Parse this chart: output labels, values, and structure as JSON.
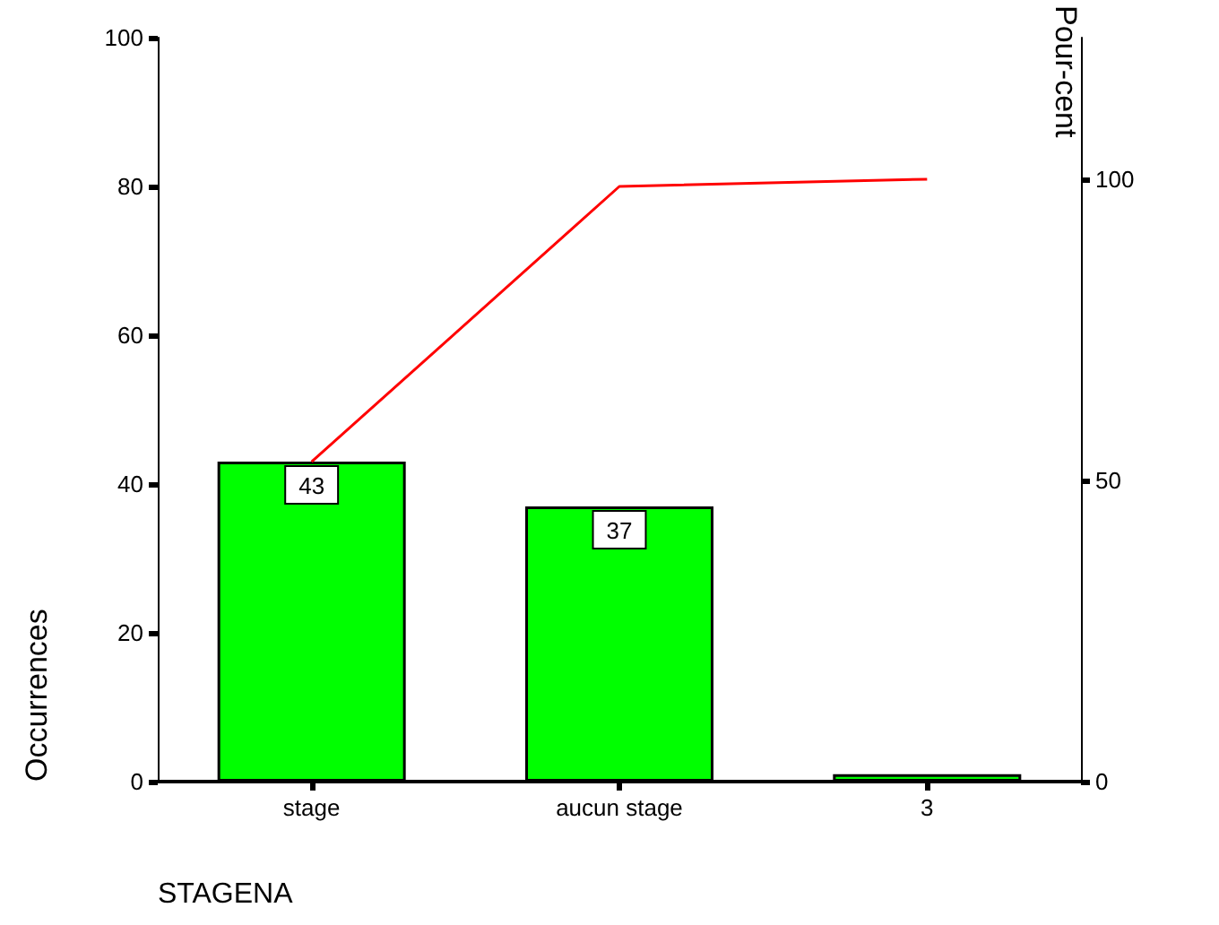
{
  "chart_data": {
    "type": "bar",
    "xlabel": "STAGENA",
    "ylabel": "Occurrences",
    "y2label": "Pour-cent",
    "categories": [
      "stage",
      "aucun stage",
      "3"
    ],
    "series": [
      {
        "color": "#00ff00",
        "values": [
          43,
          37,
          1
        ],
        "value_labels": [
          "43",
          "37",
          null
        ]
      },
      {
        "type": "line",
        "axis": "y2",
        "color": "#ff0000",
        "values": [
          53.1,
          98.8,
          100
        ],
        "marker": "none"
      }
    ],
    "ylim": [
      0,
      100
    ],
    "yticks": [
      0,
      20,
      40,
      60,
      80,
      100
    ],
    "y2lim": [
      0,
      123.5
    ],
    "y2ticks": [
      0,
      50,
      100
    ],
    "grid": false
  }
}
